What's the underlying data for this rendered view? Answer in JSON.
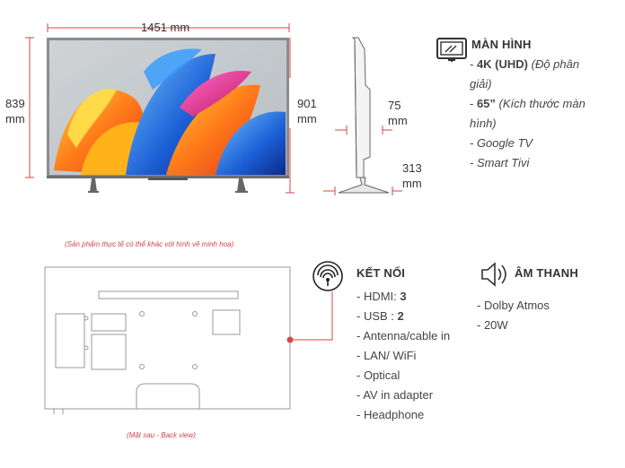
{
  "dimensions": {
    "width": "1451 mm",
    "height_left": [
      "839",
      "mm"
    ],
    "height_right": [
      "901",
      "mm"
    ],
    "depth_panel": [
      "75",
      "mm"
    ],
    "depth_stand": [
      "313",
      "mm"
    ]
  },
  "notes": {
    "front_note": "(Sản phẩm thực tế có thể khác với hình vẽ minh hoạ)",
    "back_note": "(Mặt sau - Back view)"
  },
  "screen_spec": {
    "icon": "monitor-icon",
    "title": "MÀN HÌNH",
    "resolution_prefix": "- ",
    "resolution_bold": "4K (UHD)",
    "resolution_rest_1": " (Độ phân",
    "resolution_rest_2": "giải)",
    "size_prefix": "- ",
    "size_bold": "65”",
    "size_rest_1": " (Kích thước màn",
    "size_rest_2": "hình)",
    "os": "- Google TV",
    "smart": "- Smart Tivi"
  },
  "connect_spec": {
    "icon": "wireless-signal-icon",
    "title": "KẾT NỐI",
    "hdmi_label": "- HDMI: ",
    "hdmi_value": "3",
    "usb_label": "- USB : ",
    "usb_value": "2",
    "items": [
      "- Antenna/cable in",
      "- LAN/ WiFi",
      "- Optical",
      "- AV in adapter",
      "- Headphone"
    ]
  },
  "sound_spec": {
    "icon": "speaker-icon",
    "title": "ÂM THANH",
    "items": [
      "- Dolby Atmos",
      "- 20W"
    ]
  },
  "colors": {
    "accent_red": "#d64545",
    "tv_frame": "#888888",
    "line_gray": "#aaaaaa"
  }
}
